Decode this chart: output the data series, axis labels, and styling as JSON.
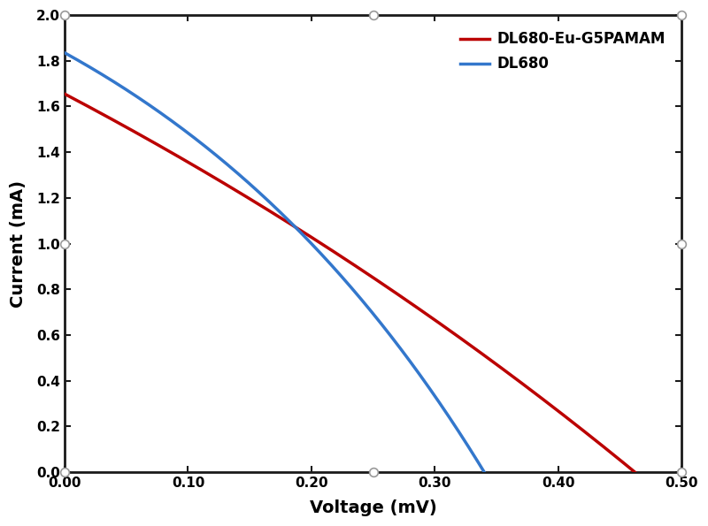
{
  "title": "",
  "xlabel": "Voltage (mV)",
  "ylabel": "Current (mA)",
  "xlim": [
    0,
    0.5
  ],
  "ylim": [
    0,
    2.0
  ],
  "xticks": [
    0.0,
    0.1,
    0.2,
    0.3,
    0.4,
    0.5
  ],
  "yticks": [
    0.0,
    0.2,
    0.4,
    0.6,
    0.8,
    1.0,
    1.2,
    1.4,
    1.6,
    1.8,
    2.0
  ],
  "red_label": "DL680-Eu-G5PAMAM",
  "blue_label": "DL680",
  "red_color": "#BB0000",
  "blue_color": "#3377CC",
  "line_width": 2.5,
  "red_isc": 1.655,
  "red_voc": 0.462,
  "red_n": 40.0,
  "blue_isc": 1.835,
  "blue_voc": 0.34,
  "blue_n": 12.0,
  "vt": 0.026,
  "border_color": "#1a1a1a",
  "marker_edge_color": "#999999",
  "bg_color": "#FFFFFF",
  "font_size_label": 14,
  "font_size_tick": 11,
  "font_size_legend": 12,
  "marker_size": 7
}
